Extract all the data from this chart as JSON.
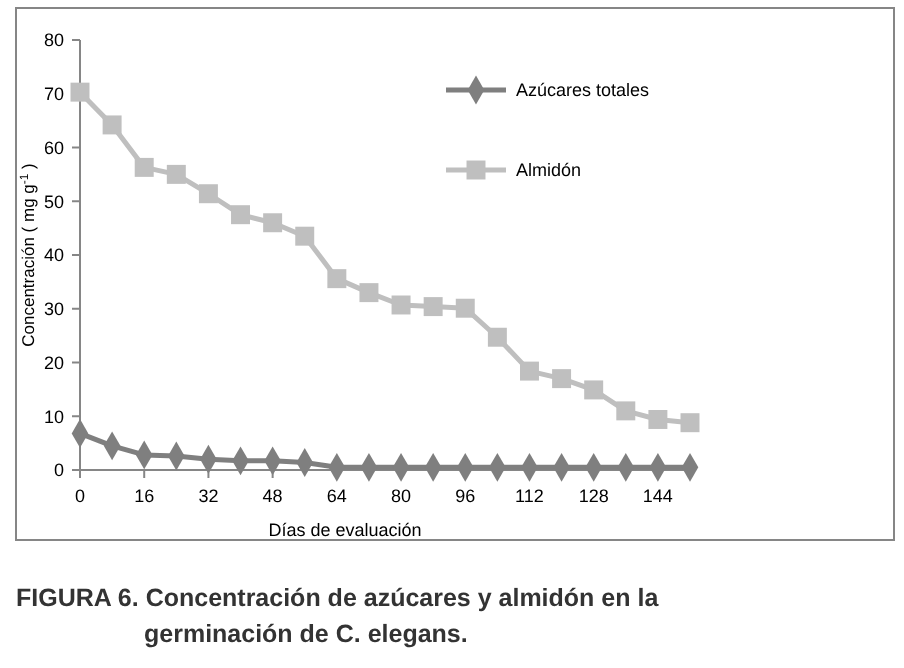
{
  "chart_data": {
    "type": "line",
    "xlabel": "Días de evaluación",
    "ylabel": "Concentración ( mg g$^{-1}$ )",
    "x": [
      0,
      8,
      16,
      24,
      32,
      40,
      48,
      56,
      64,
      72,
      80,
      88,
      96,
      104,
      112,
      120,
      128,
      136,
      144,
      152
    ],
    "series": [
      {
        "name": "Azúcares totales",
        "color": "#7f7f7f",
        "marker": "diamond",
        "values": [
          6.8,
          4.5,
          2.8,
          2.6,
          2.0,
          1.7,
          1.7,
          1.4,
          0.5,
          0.5,
          0.5,
          0.5,
          0.5,
          0.5,
          0.5,
          0.5,
          0.5,
          0.5,
          0.5,
          0.5
        ]
      },
      {
        "name": "Almidón",
        "color": "#bfbfbf",
        "marker": "square",
        "values": [
          70.3,
          64.2,
          56.3,
          55,
          51.4,
          47.5,
          46,
          43.5,
          35.6,
          33,
          30.7,
          30.4,
          30.1,
          24.7,
          18.4,
          17,
          14.9,
          11,
          9.4,
          8.8
        ]
      }
    ],
    "xlim": [
      0,
      152
    ],
    "xticks": [
      0,
      16,
      32,
      48,
      64,
      80,
      96,
      112,
      128,
      144
    ],
    "ylim": [
      0,
      80
    ],
    "yticks": [
      0,
      10,
      20,
      30,
      40,
      50,
      60,
      70,
      80
    ],
    "grid": false,
    "legend": "top right",
    "annotations": [
      "FIGURA 6. Concentración de azúcares y almidón en la germinación de C. elegans."
    ]
  }
}
